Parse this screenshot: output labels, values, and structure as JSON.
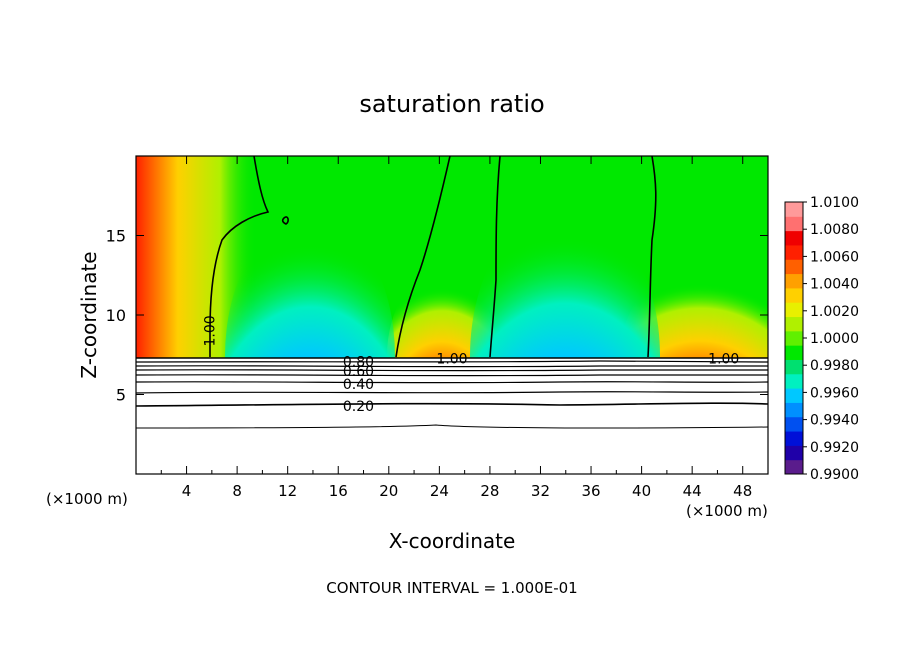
{
  "chart_data": {
    "type": "heatmap",
    "title": "saturation ratio",
    "xlabel": "X-coordinate",
    "ylabel": "Z-coordinate",
    "x_unit_left": "(×1000 m)",
    "x_unit_right": "(×1000 m)",
    "xlim": [
      0,
      50
    ],
    "ylim": [
      0,
      20
    ],
    "x_ticks": [
      "4",
      "8",
      "12",
      "16",
      "20",
      "24",
      "28",
      "32",
      "36",
      "40",
      "44",
      "48"
    ],
    "x_tick_values": [
      4,
      8,
      12,
      16,
      20,
      24,
      28,
      32,
      36,
      40,
      44,
      48
    ],
    "y_ticks": [
      "5",
      "10",
      "15"
    ],
    "y_tick_values": [
      5,
      10,
      15
    ],
    "footer": "CONTOUR INTERVAL = 1.000E-01",
    "colorbar": {
      "min": 0.99,
      "max": 1.01,
      "labels": [
        "1.0100",
        "1.0080",
        "1.0060",
        "1.0040",
        "1.0020",
        "1.0000",
        "0.9980",
        "0.9960",
        "0.9940",
        "0.9920",
        "0.9900"
      ],
      "label_values": [
        1.01,
        1.008,
        1.006,
        1.004,
        1.002,
        1.0,
        0.998,
        0.996,
        0.994,
        0.992,
        0.99
      ],
      "colors": [
        "#5a1c8c",
        "#1f00a8",
        "#0010d8",
        "#0050f0",
        "#0090ff",
        "#00c8ff",
        "#00f0c0",
        "#00e070",
        "#00e800",
        "#60f000",
        "#b0f000",
        "#e8f000",
        "#ffd000",
        "#ffa000",
        "#ff6000",
        "#ff2000",
        "#f00000",
        "#ff7070",
        "#ff9a9a"
      ]
    },
    "contour_labels": [
      {
        "text": "1.00",
        "x": 5.9,
        "z": 9.0,
        "rotate": -90
      },
      {
        "text": "1.00",
        "x": 25.0,
        "z": 7.2
      },
      {
        "text": "1.00",
        "x": 46.5,
        "z": 7.2
      },
      {
        "text": "0.80",
        "x": 17.6,
        "z": 7.0
      },
      {
        "text": "0.60",
        "x": 17.6,
        "z": 6.4
      },
      {
        "text": "0.40",
        "x": 17.6,
        "z": 5.6
      },
      {
        "text": "0.20",
        "x": 17.6,
        "z": 4.2
      }
    ]
  }
}
